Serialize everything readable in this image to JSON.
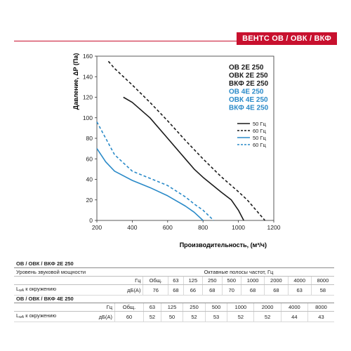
{
  "header": {
    "badge": "ВЕНТС ОВ / ОВК / ВКФ",
    "accent_color": "#c8102e"
  },
  "chart_data": {
    "type": "line",
    "xlabel": "Производительность, (м³/ч)",
    "ylabel": "Давление, ΔP (Па)",
    "xlim": [
      200,
      1200
    ],
    "ylim": [
      0,
      160
    ],
    "x_ticks": [
      "200",
      "400",
      "600",
      "800",
      "1000",
      "1200"
    ],
    "y_ticks": [
      "0",
      "20",
      "40",
      "60",
      "80",
      "100",
      "120",
      "140",
      "160"
    ],
    "grid": false,
    "legend": {
      "models": [
        {
          "label": "ОВ 2Е 250",
          "color": "#1a1a1a"
        },
        {
          "label": "ОВК 2Е 250",
          "color": "#1a1a1a"
        },
        {
          "label": "ВКФ 2Е 250",
          "color": "#1a1a1a"
        },
        {
          "label": "ОВ 4Е 250",
          "color": "#2a8ac8"
        },
        {
          "label": "ОВК 4Е 250",
          "color": "#2a8ac8"
        },
        {
          "label": "ВКФ 4Е 250",
          "color": "#2a8ac8"
        }
      ],
      "lines": [
        {
          "label": "50 Гц",
          "color": "#1a1a1a",
          "dashed": false
        },
        {
          "label": "60 Гц",
          "color": "#1a1a1a",
          "dashed": true
        },
        {
          "label": "50 Гц",
          "color": "#2a8ac8",
          "dashed": false
        },
        {
          "label": "60 Гц",
          "color": "#2a8ac8",
          "dashed": true
        }
      ],
      "placement": "right"
    },
    "series": [
      {
        "color": "#1a1a1a",
        "dashed": false,
        "x": [
          350,
          400,
          500,
          600,
          700,
          750,
          800,
          900,
          960,
          1000,
          1030
        ],
        "y": [
          120,
          115,
          100,
          80,
          60,
          50,
          42,
          28,
          20,
          10,
          0
        ]
      },
      {
        "color": "#1a1a1a",
        "dashed": true,
        "x": [
          265,
          300,
          400,
          500,
          600,
          700,
          800,
          900,
          1000,
          1050,
          1100,
          1150
        ],
        "y": [
          155,
          148,
          132,
          115,
          97,
          78,
          60,
          43,
          28,
          20,
          10,
          0
        ]
      },
      {
        "color": "#2a8ac8",
        "dashed": false,
        "x": [
          200,
          250,
          300,
          400,
          500,
          600,
          700,
          750,
          800
        ],
        "y": [
          70,
          57,
          48,
          39,
          32,
          24,
          14,
          8,
          0
        ]
      },
      {
        "color": "#2a8ac8",
        "dashed": true,
        "x": [
          200,
          250,
          300,
          400,
          500,
          600,
          700,
          750,
          800,
          860
        ],
        "y": [
          96,
          80,
          64,
          48,
          41,
          34,
          23,
          16,
          10,
          0
        ]
      }
    ]
  },
  "tables": [
    {
      "title": "ОВ / ОВК / ВКФ 2Е 250",
      "sound_label": "Уровень звуковой мощности",
      "octave_label": "Октавные полосы частот, Гц",
      "hz_label": "Гц",
      "cols": [
        "Общ.",
        "63",
        "125",
        "250",
        "500",
        "1000",
        "2000",
        "4000",
        "8000"
      ],
      "row_label": "L",
      "row_sub": "wA",
      "row_tail": " к окружению",
      "row_unit": "дБ(А)",
      "values": [
        "76",
        "68",
        "66",
        "68",
        "70",
        "68",
        "68",
        "63",
        "58"
      ]
    },
    {
      "title": "ОВ / ОВК / ВКФ 4Е 250",
      "hz_label": "Гц",
      "cols": [
        "Общ.",
        "63",
        "125",
        "250",
        "500",
        "1000",
        "2000",
        "4000",
        "8000"
      ],
      "row_label": "L",
      "row_sub": "wA",
      "row_tail": " к окружению",
      "row_unit": "дБ(А)",
      "values": [
        "60",
        "52",
        "50",
        "52",
        "53",
        "52",
        "52",
        "44",
        "43"
      ]
    }
  ]
}
